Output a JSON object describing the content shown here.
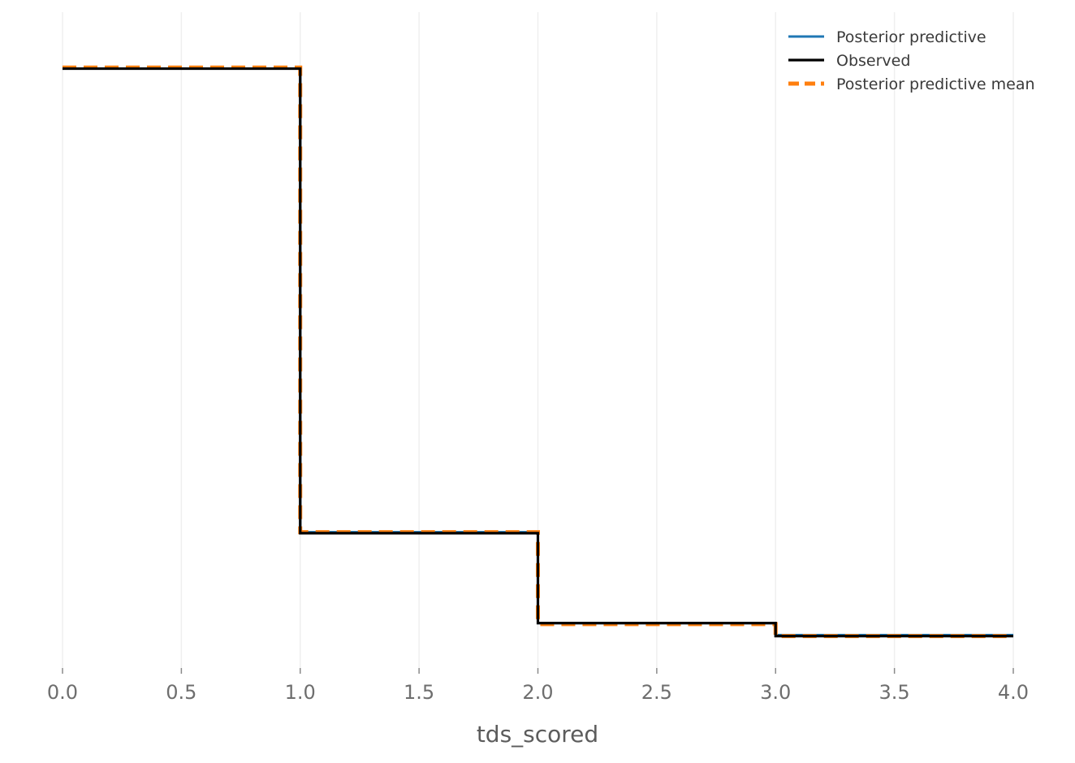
{
  "chart_data": {
    "type": "line",
    "step": "post",
    "xlabel": "tds_scored",
    "ylabel": "",
    "xlim": [
      0,
      4
    ],
    "ylim": [
      0,
      0.65
    ],
    "x_ticks": [
      "0.0",
      "0.5",
      "1.0",
      "1.5",
      "2.0",
      "2.5",
      "3.0",
      "3.5",
      "4.0"
    ],
    "y_ticks_visible": false,
    "grid": "vertical",
    "legend_position": "top-right",
    "x": [
      0,
      1,
      2,
      3,
      4
    ],
    "series": [
      {
        "name": "Posterior predictive",
        "color": "#1f77b4",
        "style": "solid",
        "values": [
          0.6,
          0.136,
          0.045,
          0.033,
          0.033
        ]
      },
      {
        "name": "Observed",
        "color": "#000000",
        "style": "solid",
        "values": [
          0.6,
          0.135,
          0.045,
          0.032,
          0.032
        ]
      },
      {
        "name": "Posterior predictive mean",
        "color": "#ff7f0e",
        "style": "dashed",
        "values": [
          0.601,
          0.136,
          0.044,
          0.032,
          0.032
        ]
      }
    ]
  }
}
